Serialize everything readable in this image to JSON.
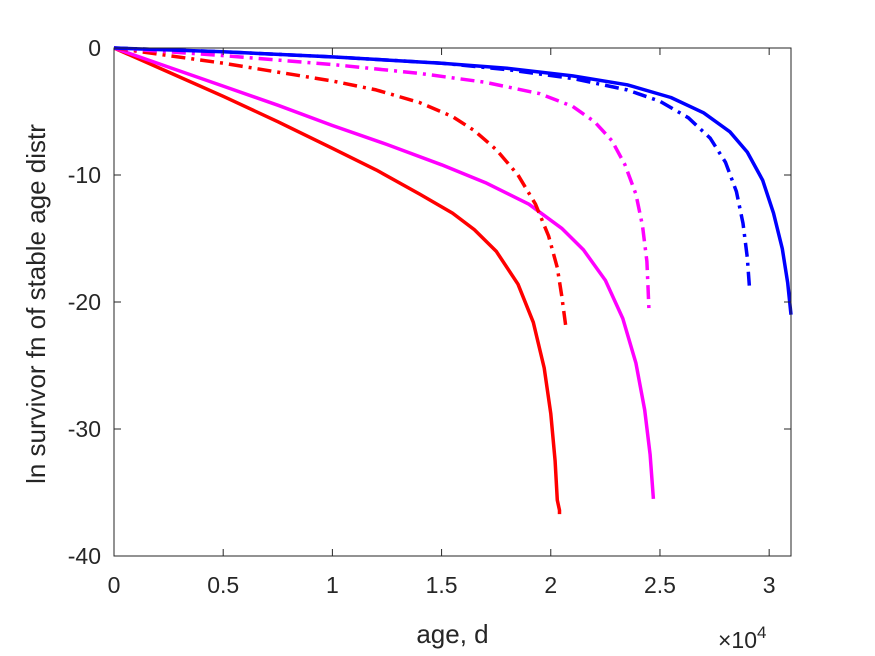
{
  "chart_data": {
    "type": "line",
    "xlabel": "age, d",
    "ylabel": "ln survivor fn of stable age distr",
    "x_multiplier_label": {
      "base": "×10",
      "exponent": "4"
    },
    "xlim": [
      0,
      31000
    ],
    "ylim": [
      -40,
      0
    ],
    "x_ticks": [
      0,
      5000,
      10000,
      15000,
      20000,
      25000,
      30000
    ],
    "x_tick_labels": [
      "0",
      "0.5",
      "1",
      "1.5",
      "2",
      "2.5",
      "3"
    ],
    "y_ticks": [
      0,
      -10,
      -20,
      -30,
      -40
    ],
    "y_tick_labels": [
      "0",
      "-10",
      "-20",
      "-30",
      "-40"
    ],
    "grid": false,
    "box": true,
    "series": [
      {
        "color": "#ff0000",
        "style": "solid",
        "points": [
          [
            0,
            0
          ],
          [
            2500,
            -1.9
          ],
          [
            5000,
            -3.8
          ],
          [
            7500,
            -5.8
          ],
          [
            10000,
            -7.9
          ],
          [
            12000,
            -9.6
          ],
          [
            14000,
            -11.5
          ],
          [
            15500,
            -13.0
          ],
          [
            16500,
            -14.3
          ],
          [
            17500,
            -16.0
          ],
          [
            18500,
            -18.6
          ],
          [
            19200,
            -21.6
          ],
          [
            19700,
            -25.2
          ],
          [
            20000,
            -28.8
          ],
          [
            20200,
            -32.5
          ],
          [
            20300,
            -35.6
          ],
          [
            20400,
            -36.4
          ],
          [
            20400,
            -36.7
          ]
        ]
      },
      {
        "color": "#ff00ff",
        "style": "solid",
        "points": [
          [
            0,
            0
          ],
          [
            2500,
            -1.5
          ],
          [
            5000,
            -3.0
          ],
          [
            7500,
            -4.5
          ],
          [
            10000,
            -6.1
          ],
          [
            12500,
            -7.6
          ],
          [
            15000,
            -9.2
          ],
          [
            17000,
            -10.6
          ],
          [
            19000,
            -12.3
          ],
          [
            20500,
            -14.2
          ],
          [
            21500,
            -15.9
          ],
          [
            22500,
            -18.3
          ],
          [
            23300,
            -21.3
          ],
          [
            23900,
            -24.8
          ],
          [
            24300,
            -28.5
          ],
          [
            24550,
            -32.0
          ],
          [
            24700,
            -35.5
          ]
        ]
      },
      {
        "color": "#0000ff",
        "style": "solid",
        "points": [
          [
            0,
            0
          ],
          [
            5000,
            -0.3
          ],
          [
            10000,
            -0.7
          ],
          [
            15000,
            -1.2
          ],
          [
            18000,
            -1.6
          ],
          [
            21000,
            -2.2
          ],
          [
            23500,
            -2.9
          ],
          [
            25500,
            -3.9
          ],
          [
            27000,
            -5.1
          ],
          [
            28200,
            -6.6
          ],
          [
            29000,
            -8.2
          ],
          [
            29700,
            -10.4
          ],
          [
            30200,
            -13.0
          ],
          [
            30600,
            -15.8
          ],
          [
            30850,
            -18.5
          ],
          [
            31000,
            -21.0
          ]
        ]
      },
      {
        "color": "#ff0000",
        "style": "dashdot",
        "points": [
          [
            0,
            0
          ],
          [
            2500,
            -0.6
          ],
          [
            5000,
            -1.2
          ],
          [
            7500,
            -1.9
          ],
          [
            10000,
            -2.6
          ],
          [
            12000,
            -3.3
          ],
          [
            14000,
            -4.3
          ],
          [
            15500,
            -5.4
          ],
          [
            16500,
            -6.5
          ],
          [
            17500,
            -8.0
          ],
          [
            18500,
            -10.0
          ],
          [
            19300,
            -12.3
          ],
          [
            19900,
            -14.8
          ],
          [
            20300,
            -17.3
          ],
          [
            20500,
            -19.5
          ],
          [
            20700,
            -22.1
          ]
        ]
      },
      {
        "color": "#ff00ff",
        "style": "dashdot",
        "points": [
          [
            0,
            0
          ],
          [
            5000,
            -0.6
          ],
          [
            10000,
            -1.3
          ],
          [
            14000,
            -2.0
          ],
          [
            17000,
            -2.7
          ],
          [
            19500,
            -3.6
          ],
          [
            21000,
            -4.6
          ],
          [
            22000,
            -5.8
          ],
          [
            22800,
            -7.3
          ],
          [
            23400,
            -9.2
          ],
          [
            23900,
            -11.5
          ],
          [
            24200,
            -14.0
          ],
          [
            24400,
            -16.8
          ],
          [
            24450,
            -18.8
          ],
          [
            24500,
            -20.7
          ]
        ]
      },
      {
        "color": "#0000ff",
        "style": "dashdot",
        "points": [
          [
            0,
            0
          ],
          [
            5000,
            -0.3
          ],
          [
            10000,
            -0.7
          ],
          [
            15000,
            -1.2
          ],
          [
            18000,
            -1.7
          ],
          [
            21000,
            -2.4
          ],
          [
            23500,
            -3.3
          ],
          [
            25000,
            -4.2
          ],
          [
            26300,
            -5.5
          ],
          [
            27300,
            -7.1
          ],
          [
            28000,
            -9.0
          ],
          [
            28500,
            -11.3
          ],
          [
            28800,
            -13.8
          ],
          [
            29000,
            -16.5
          ],
          [
            29100,
            -18.9
          ]
        ]
      }
    ]
  }
}
